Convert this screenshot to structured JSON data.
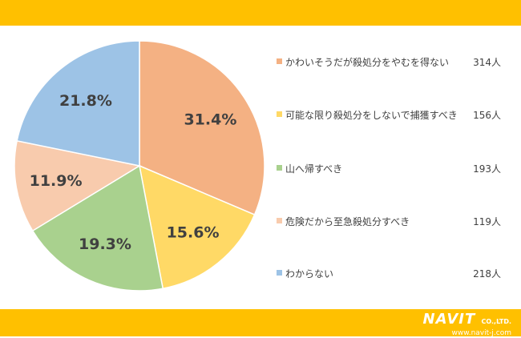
{
  "colors": {
    "band": "#FFC000",
    "slices": [
      "#F4B183",
      "#FFD966",
      "#A9D18E",
      "#F8CBAD",
      "#9DC3E6"
    ],
    "pct_text": "#404040"
  },
  "chart_data": {
    "type": "pie",
    "start": "12 o'clock, clockwise",
    "slices": [
      {
        "label": "かわいそうだが殺処分をやむを得ない",
        "count": 314,
        "count_text": "314人",
        "percent": 31.4,
        "percent_text": "31.4%"
      },
      {
        "label": "可能な限り殺処分をしないで捕獲すべき",
        "count": 156,
        "count_text": "156人",
        "percent": 15.6,
        "percent_text": "15.6%"
      },
      {
        "label": "山へ帰すべき",
        "count": 193,
        "count_text": "193人",
        "percent": 19.3,
        "percent_text": "19.3%"
      },
      {
        "label": "危険だから至急殺処分すべき",
        "count": 119,
        "count_text": "119人",
        "percent": 11.9,
        "percent_text": "11.9%"
      },
      {
        "label": "わからない",
        "count": 218,
        "count_text": "218人",
        "percent": 21.8,
        "percent_text": "21.8%"
      }
    ],
    "legend": "right"
  },
  "logo": {
    "name": "NAVIT",
    "suffix": "CO.,LTD.",
    "url": "www.navit-j.com"
  }
}
